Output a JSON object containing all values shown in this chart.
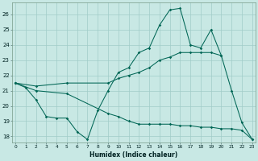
{
  "xlabel": "Humidex (Indice chaleur)",
  "bg_color": "#c8e8e4",
  "line_color": "#006655",
  "grid_color": "#a0ccc8",
  "xlim_min": -0.3,
  "xlim_max": 23.3,
  "ylim_min": 17.6,
  "ylim_max": 26.8,
  "yticks": [
    18,
    19,
    20,
    21,
    22,
    23,
    24,
    25,
    26
  ],
  "xticks": [
    0,
    1,
    2,
    3,
    4,
    5,
    6,
    7,
    8,
    9,
    10,
    11,
    12,
    13,
    14,
    15,
    16,
    17,
    18,
    19,
    20,
    21,
    22,
    23
  ],
  "line_zigzag_x": [
    0,
    1,
    2,
    3,
    4,
    5,
    6,
    7,
    8,
    9,
    10,
    11,
    12,
    13,
    14,
    15,
    16,
    17,
    18,
    19,
    20,
    21,
    22,
    23
  ],
  "line_zigzag_y": [
    21.5,
    21.2,
    20.4,
    19.3,
    19.2,
    19.2,
    18.3,
    17.8,
    19.7,
    21.0,
    22.2,
    22.5,
    23.5,
    23.8,
    25.3,
    26.3,
    26.4,
    24.0,
    23.8,
    25.0,
    23.3,
    21.0,
    18.9,
    17.8
  ],
  "line_up_x": [
    0,
    2,
    5,
    9,
    10,
    11,
    12,
    13,
    14,
    15,
    16,
    17,
    18,
    19,
    20
  ],
  "line_up_y": [
    21.5,
    21.3,
    21.5,
    21.5,
    21.8,
    22.0,
    22.2,
    22.5,
    23.0,
    23.2,
    23.5,
    23.5,
    23.5,
    23.5,
    23.3
  ],
  "line_down_x": [
    0,
    2,
    5,
    9,
    10,
    11,
    12,
    13,
    14,
    15,
    16,
    17,
    18,
    19,
    20,
    21,
    22,
    23
  ],
  "line_down_y": [
    21.5,
    21.0,
    20.8,
    19.5,
    19.3,
    19.0,
    18.8,
    18.8,
    18.8,
    18.8,
    18.7,
    18.7,
    18.6,
    18.6,
    18.5,
    18.5,
    18.4,
    17.8
  ]
}
